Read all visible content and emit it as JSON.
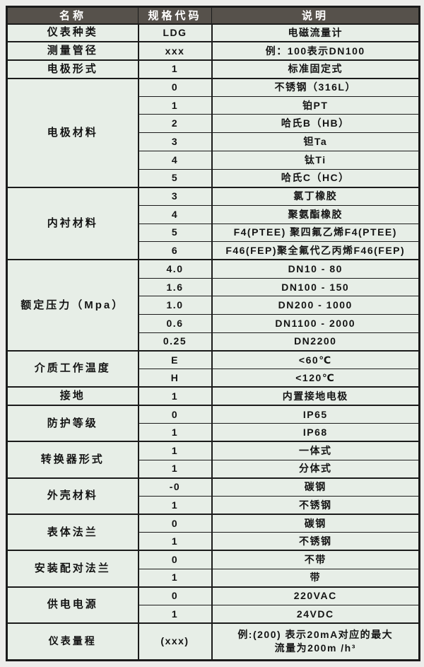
{
  "colors": {
    "page_bg": "#ededeb",
    "body_bg": "#e7eee7",
    "border": "#1b1b1b",
    "header_bg": "#56514b",
    "header_text": "#ffffff",
    "text": "#141414"
  },
  "table": {
    "columns": [
      "名称",
      "规格代码",
      "说明"
    ],
    "groups": [
      {
        "name": "仪表种类",
        "rows": [
          {
            "code": "LDG",
            "desc": "电磁流量计"
          }
        ]
      },
      {
        "name": "测量管径",
        "rows": [
          {
            "code": "xxx",
            "desc": "例：100表示DN100"
          }
        ]
      },
      {
        "name": "电极形式",
        "rows": [
          {
            "code": "1",
            "desc": "标准固定式"
          }
        ]
      },
      {
        "name": "电极材料",
        "rows": [
          {
            "code": "0",
            "desc": "不锈钢（316L）"
          },
          {
            "code": "1",
            "desc": "铂PT"
          },
          {
            "code": "2",
            "desc": "哈氏B（HB）"
          },
          {
            "code": "3",
            "desc": "钽Ta"
          },
          {
            "code": "4",
            "desc": "钛Ti"
          },
          {
            "code": "5",
            "desc": "哈氏C（HC）"
          }
        ]
      },
      {
        "name": "内衬材料",
        "rows": [
          {
            "code": "3",
            "desc": "氯丁橡胶"
          },
          {
            "code": "4",
            "desc": "聚氨酯橡胶"
          },
          {
            "code": "5",
            "desc": "F4(PTEE) 聚四氟乙烯F4(PTEE)"
          },
          {
            "code": "6",
            "desc": "F46(FEP)聚全氟代乙丙烯F46(FEP)"
          }
        ]
      },
      {
        "name": "额定压力（Mpa）",
        "rows": [
          {
            "code": "4.0",
            "desc": "DN10 - 80"
          },
          {
            "code": "1.6",
            "desc": "DN100 - 150"
          },
          {
            "code": "1.0",
            "desc": "DN200 - 1000"
          },
          {
            "code": "0.6",
            "desc": "DN1100 - 2000"
          },
          {
            "code": "0.25",
            "desc": "DN2200"
          }
        ]
      },
      {
        "name": "介质工作温度",
        "rows": [
          {
            "code": "E",
            "desc": "<60℃"
          },
          {
            "code": "H",
            "desc": "<120℃"
          }
        ]
      },
      {
        "name": "接地",
        "rows": [
          {
            "code": "1",
            "desc": "内置接地电极"
          }
        ]
      },
      {
        "name": "防护等级",
        "rows": [
          {
            "code": "0",
            "desc": "IP65"
          },
          {
            "code": "1",
            "desc": "IP68"
          }
        ]
      },
      {
        "name": "转换器形式",
        "rows": [
          {
            "code": "1",
            "desc": "一体式"
          },
          {
            "code": "1",
            "desc": "分体式"
          }
        ]
      },
      {
        "name": "外壳材料",
        "rows": [
          {
            "code": "-0",
            "desc": "碳钢"
          },
          {
            "code": "1",
            "desc": "不锈钢"
          }
        ]
      },
      {
        "name": "表体法兰",
        "rows": [
          {
            "code": "0",
            "desc": "碳钢"
          },
          {
            "code": "1",
            "desc": "不锈钢"
          }
        ]
      },
      {
        "name": "安装配对法兰",
        "rows": [
          {
            "code": "0",
            "desc": "不带"
          },
          {
            "code": "1",
            "desc": "带"
          }
        ]
      },
      {
        "name": "供电电源",
        "rows": [
          {
            "code": "0",
            "desc": "220VAC"
          },
          {
            "code": "1",
            "desc": "24VDC"
          }
        ]
      },
      {
        "name": "仪表量程",
        "tall": true,
        "rows": [
          {
            "code": "(xxx)",
            "desc": "例:(200) 表示20mA对应的最大\n流量为200m /h³"
          }
        ]
      }
    ]
  }
}
